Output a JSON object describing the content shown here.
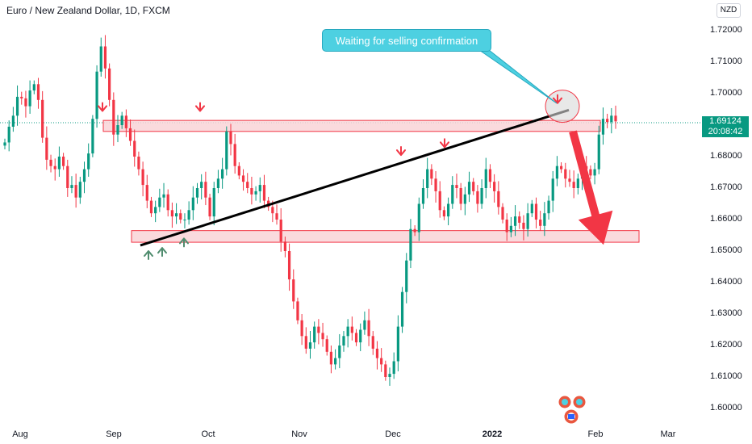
{
  "header": {
    "title": "Euro / New Zealand Dollar, 1D, FXCM",
    "currency": "NZD"
  },
  "price_tag": {
    "price": "1.69124",
    "countdown": "20:08:42"
  },
  "annotation": {
    "callout": "Waiting for selling confirmation"
  },
  "colors": {
    "up": "#089981",
    "down": "#f23645",
    "zone_fill": "#f9d3d7",
    "zone_border": "#f23645",
    "callout": "#4dd0e1",
    "trendline": "#000000"
  },
  "chart_data": {
    "type": "candlestick",
    "symbol": "EURNZD",
    "interval": "1D",
    "ylim": [
      1.595,
      1.725
    ],
    "y_ticks": [
      "1.72000",
      "1.71000",
      "1.70000",
      "1.69000",
      "1.68000",
      "1.67000",
      "1.66000",
      "1.65000",
      "1.64000",
      "1.63000",
      "1.62000",
      "1.61000",
      "1.60000"
    ],
    "x_ticks": [
      {
        "label": "Aug",
        "x": 25
      },
      {
        "label": "Sep",
        "x": 141
      },
      {
        "label": "Oct",
        "x": 258
      },
      {
        "label": "Nov",
        "x": 371
      },
      {
        "label": "Dec",
        "x": 487
      },
      {
        "label": "2022",
        "x": 610,
        "bold": true
      },
      {
        "label": "Feb",
        "x": 738
      },
      {
        "label": "Mar",
        "x": 828
      }
    ],
    "closes": [
      1.6845,
      1.6895,
      1.693,
      1.699,
      1.6985,
      1.696,
      1.701,
      1.703,
      1.698,
      1.686,
      1.679,
      1.677,
      1.676,
      1.68,
      1.677,
      1.67,
      1.671,
      1.667,
      1.672,
      1.676,
      1.681,
      1.692,
      1.707,
      1.715,
      1.708,
      1.698,
      1.687,
      1.69,
      1.693,
      1.689,
      1.685,
      1.68,
      1.676,
      1.671,
      1.666,
      1.662,
      1.664,
      1.667,
      1.668,
      1.663,
      1.661,
      1.662,
      1.66,
      1.66,
      1.663,
      1.667,
      1.67,
      1.672,
      1.667,
      1.661,
      1.67,
      1.673,
      1.676,
      1.688,
      1.684,
      1.677,
      1.674,
      1.672,
      1.67,
      1.668,
      1.669,
      1.671,
      1.666,
      1.664,
      1.662,
      1.66,
      1.653,
      1.65,
      1.641,
      1.634,
      1.628,
      1.623,
      1.619,
      1.621,
      1.626,
      1.624,
      1.622,
      1.618,
      1.614,
      1.616,
      1.62,
      1.623,
      1.626,
      1.624,
      1.621,
      1.625,
      1.628,
      1.623,
      1.619,
      1.616,
      1.614,
      1.61,
      1.611,
      1.615,
      1.626,
      1.637,
      1.647,
      1.657,
      1.656,
      1.665,
      1.67,
      1.676,
      1.673,
      1.669,
      1.663,
      1.661,
      1.665,
      1.671,
      1.67,
      1.665,
      1.668,
      1.672,
      1.669,
      1.665,
      1.67,
      1.676,
      1.672,
      1.669,
      1.664,
      1.66,
      1.656,
      1.658,
      1.661,
      1.659,
      1.657,
      1.662,
      1.665,
      1.66,
      1.658,
      1.662,
      1.666,
      1.673,
      1.677,
      1.676,
      1.673,
      1.672,
      1.67,
      1.673,
      1.677,
      1.676,
      1.674,
      1.676,
      1.687,
      1.692,
      1.691,
      1.693,
      1.6912
    ],
    "series_note_x": [
      6,
      763
    ],
    "zones": [
      {
        "low": 1.688,
        "high": 1.6915,
        "x_start": 128,
        "x_end": 744
      },
      {
        "low": 1.6528,
        "high": 1.6565,
        "x_start": 163,
        "x_end": 792
      }
    ],
    "trendline": {
      "x1": 174,
      "y1": 1.6518,
      "x2": 705,
      "y2": 1.6948
    },
    "down_arrows": [
      {
        "x": 127,
        "y": 1.6945
      },
      {
        "x": 248,
        "y": 1.6945
      },
      {
        "x": 497,
        "y": 1.6805
      },
      {
        "x": 551,
        "y": 1.683
      },
      {
        "x": 691,
        "y": 1.697
      }
    ],
    "up_arrows": [
      {
        "x": 184,
        "y": 1.65
      },
      {
        "x": 201,
        "y": 1.651
      },
      {
        "x": 228,
        "y": 1.654
      }
    ],
    "forecast_arrow": {
      "x1": 710,
      "y1": 1.688,
      "x2": 748,
      "y2": 1.652
    },
    "ellipse": {
      "x": 697,
      "y": 1.696
    }
  }
}
